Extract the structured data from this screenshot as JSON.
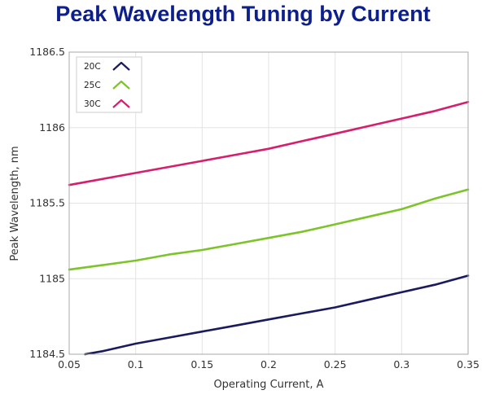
{
  "chart_data": {
    "type": "line",
    "title": "Peak Wavelength Tuning by Current",
    "xlabel": "Operating Current, A",
    "ylabel": "Peak Wavelength, nm",
    "xlim": [
      0.05,
      0.35
    ],
    "ylim": [
      1184.5,
      1186.5
    ],
    "xticks": [
      "0.05",
      "0.1",
      "0.15",
      "0.2",
      "0.25",
      "0.3",
      "0.35"
    ],
    "yticks": [
      "1184.5",
      "1185",
      "1185.5",
      "1186",
      "1186.5"
    ],
    "grid": true,
    "legend_position": "top-left",
    "series": [
      {
        "name": "20C",
        "color": "#1a1a5e",
        "x": [
          0.062,
          0.075,
          0.1,
          0.125,
          0.15,
          0.175,
          0.2,
          0.225,
          0.25,
          0.275,
          0.3,
          0.325,
          0.35
        ],
        "y": [
          1184.5,
          1184.52,
          1184.57,
          1184.61,
          1184.65,
          1184.69,
          1184.73,
          1184.77,
          1184.81,
          1184.86,
          1184.91,
          1184.96,
          1185.02
        ]
      },
      {
        "name": "25C",
        "color": "#7dc42b",
        "x": [
          0.05,
          0.075,
          0.1,
          0.125,
          0.15,
          0.175,
          0.2,
          0.225,
          0.25,
          0.275,
          0.3,
          0.325,
          0.35
        ],
        "y": [
          1185.06,
          1185.09,
          1185.12,
          1185.16,
          1185.19,
          1185.23,
          1185.27,
          1185.31,
          1185.36,
          1185.41,
          1185.46,
          1185.53,
          1185.59
        ]
      },
      {
        "name": "30C",
        "color": "#d61e6e",
        "x": [
          0.05,
          0.075,
          0.1,
          0.125,
          0.15,
          0.175,
          0.2,
          0.225,
          0.25,
          0.275,
          0.3,
          0.325,
          0.35
        ],
        "y": [
          1185.62,
          1185.66,
          1185.7,
          1185.74,
          1185.78,
          1185.82,
          1185.86,
          1185.91,
          1185.96,
          1186.01,
          1186.06,
          1186.11,
          1186.17
        ]
      }
    ]
  }
}
